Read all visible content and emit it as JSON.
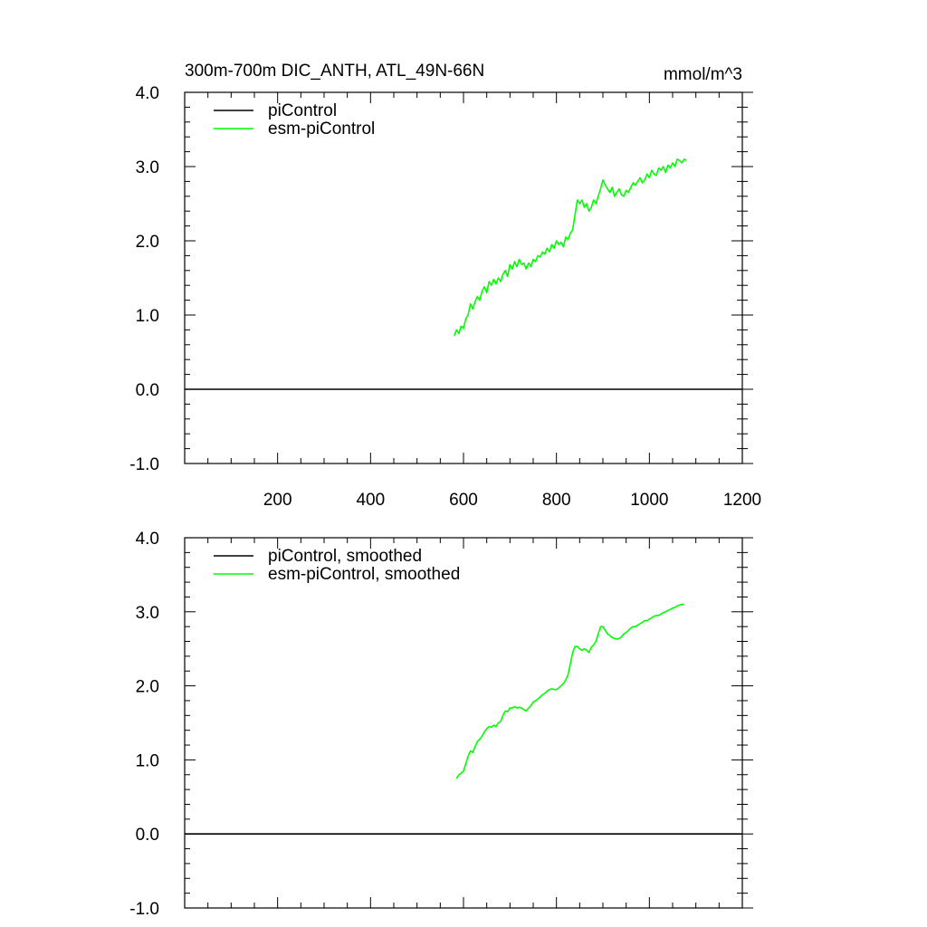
{
  "figure": {
    "title": "300m-700m DIC_ANTH, ATL_49N-66N",
    "units": "mmol/m^3"
  },
  "chart_data": [
    {
      "type": "line",
      "title": "300m-700m DIC_ANTH, ATL_49N-66N",
      "units": "mmol/m^3",
      "xlim": [
        0,
        1200
      ],
      "ylim": [
        -1.0,
        4.0
      ],
      "x_ticks": [
        200,
        400,
        600,
        800,
        1000,
        1200
      ],
      "x_tick_labels": [
        "200",
        "400",
        "600",
        "800",
        "1000",
        "1200"
      ],
      "y_ticks": [
        -1.0,
        0.0,
        1.0,
        2.0,
        3.0,
        4.0
      ],
      "y_tick_labels": [
        "-1.0",
        "0.0",
        "1.0",
        "2.0",
        "3.0",
        "4.0"
      ],
      "grid": false,
      "legend_position": "top-left",
      "series": [
        {
          "name": "piControl",
          "color": "#000000",
          "x": [
            0,
            1200
          ],
          "y": [
            0.0,
            0.0
          ]
        },
        {
          "name": "esm-piControl",
          "color": "#00ff00",
          "x": [
            580,
            585,
            590,
            595,
            600,
            605,
            610,
            615,
            620,
            625,
            630,
            635,
            640,
            645,
            650,
            655,
            660,
            665,
            670,
            675,
            680,
            685,
            690,
            695,
            700,
            705,
            710,
            715,
            720,
            725,
            730,
            735,
            740,
            745,
            750,
            755,
            760,
            765,
            770,
            775,
            780,
            785,
            790,
            795,
            800,
            805,
            810,
            815,
            820,
            825,
            830,
            835,
            840,
            845,
            850,
            855,
            860,
            865,
            870,
            875,
            880,
            885,
            890,
            895,
            900,
            905,
            910,
            915,
            920,
            925,
            930,
            935,
            940,
            945,
            950,
            955,
            960,
            965,
            970,
            975,
            980,
            985,
            990,
            995,
            1000,
            1005,
            1010,
            1015,
            1020,
            1025,
            1030,
            1035,
            1040,
            1045,
            1050,
            1055,
            1060,
            1065,
            1070,
            1075,
            1080
          ],
          "y": [
            0.72,
            0.8,
            0.75,
            0.85,
            0.82,
            0.95,
            1.0,
            1.15,
            1.08,
            1.18,
            1.25,
            1.2,
            1.32,
            1.38,
            1.3,
            1.45,
            1.4,
            1.48,
            1.42,
            1.5,
            1.45,
            1.55,
            1.6,
            1.52,
            1.68,
            1.62,
            1.72,
            1.65,
            1.75,
            1.68,
            1.7,
            1.62,
            1.7,
            1.65,
            1.75,
            1.72,
            1.8,
            1.78,
            1.85,
            1.82,
            1.9,
            1.85,
            1.95,
            1.9,
            2.0,
            1.95,
            1.98,
            1.92,
            2.05,
            2.02,
            2.1,
            2.15,
            2.35,
            2.55,
            2.5,
            2.55,
            2.45,
            2.5,
            2.4,
            2.45,
            2.55,
            2.5,
            2.6,
            2.7,
            2.82,
            2.75,
            2.7,
            2.65,
            2.72,
            2.6,
            2.65,
            2.7,
            2.62,
            2.6,
            2.68,
            2.65,
            2.72,
            2.78,
            2.75,
            2.8,
            2.85,
            2.78,
            2.82,
            2.9,
            2.85,
            2.95,
            2.9,
            2.88,
            2.98,
            2.95,
            3.0,
            2.92,
            3.02,
            2.98,
            3.05,
            3.0,
            3.1,
            3.08,
            3.05,
            3.1,
            3.08
          ]
        }
      ]
    },
    {
      "type": "line",
      "xlim": [
        0,
        1200
      ],
      "ylim": [
        -1.0,
        4.0
      ],
      "x_ticks": [
        200,
        400,
        600,
        800,
        1000,
        1200
      ],
      "x_tick_labels": [],
      "y_ticks": [
        -1.0,
        0.0,
        1.0,
        2.0,
        3.0,
        4.0
      ],
      "y_tick_labels": [
        "-1.0",
        "0.0",
        "1.0",
        "2.0",
        "3.0",
        "4.0"
      ],
      "grid": false,
      "legend_position": "top-left",
      "series": [
        {
          "name": "piControl, smoothed",
          "color": "#000000",
          "x": [
            0,
            1200
          ],
          "y": [
            0.0,
            0.0
          ]
        },
        {
          "name": "esm-piControl, smoothed",
          "color": "#00ff00",
          "x": [
            585,
            590,
            595,
            600,
            605,
            610,
            615,
            620,
            625,
            630,
            635,
            640,
            645,
            650,
            655,
            660,
            665,
            670,
            675,
            680,
            685,
            690,
            695,
            700,
            705,
            710,
            715,
            720,
            725,
            730,
            735,
            740,
            745,
            750,
            755,
            760,
            765,
            770,
            775,
            780,
            785,
            790,
            795,
            800,
            805,
            810,
            815,
            820,
            825,
            830,
            835,
            840,
            845,
            850,
            855,
            860,
            865,
            870,
            875,
            880,
            885,
            890,
            895,
            900,
            905,
            910,
            915,
            920,
            925,
            930,
            935,
            940,
            945,
            950,
            955,
            960,
            965,
            970,
            975,
            980,
            985,
            990,
            995,
            1000,
            1005,
            1010,
            1015,
            1020,
            1025,
            1030,
            1035,
            1040,
            1045,
            1050,
            1055,
            1060,
            1065,
            1070,
            1075
          ],
          "y": [
            0.75,
            0.8,
            0.82,
            0.85,
            0.95,
            1.05,
            1.12,
            1.1,
            1.18,
            1.25,
            1.28,
            1.32,
            1.38,
            1.42,
            1.45,
            1.44,
            1.47,
            1.45,
            1.5,
            1.52,
            1.6,
            1.66,
            1.65,
            1.7,
            1.7,
            1.72,
            1.7,
            1.71,
            1.7,
            1.68,
            1.66,
            1.7,
            1.73,
            1.78,
            1.8,
            1.82,
            1.85,
            1.88,
            1.9,
            1.93,
            1.95,
            1.96,
            1.95,
            1.95,
            1.97,
            2.0,
            2.03,
            2.08,
            2.15,
            2.3,
            2.45,
            2.53,
            2.53,
            2.5,
            2.48,
            2.5,
            2.48,
            2.45,
            2.52,
            2.55,
            2.6,
            2.7,
            2.8,
            2.8,
            2.75,
            2.7,
            2.68,
            2.65,
            2.64,
            2.63,
            2.64,
            2.66,
            2.7,
            2.72,
            2.75,
            2.78,
            2.8,
            2.8,
            2.82,
            2.84,
            2.86,
            2.88,
            2.88,
            2.9,
            2.92,
            2.94,
            2.95,
            2.95,
            2.97,
            2.99,
            3.0,
            3.02,
            3.03,
            3.05,
            3.06,
            3.08,
            3.09,
            3.1,
            3.1
          ]
        }
      ]
    }
  ]
}
